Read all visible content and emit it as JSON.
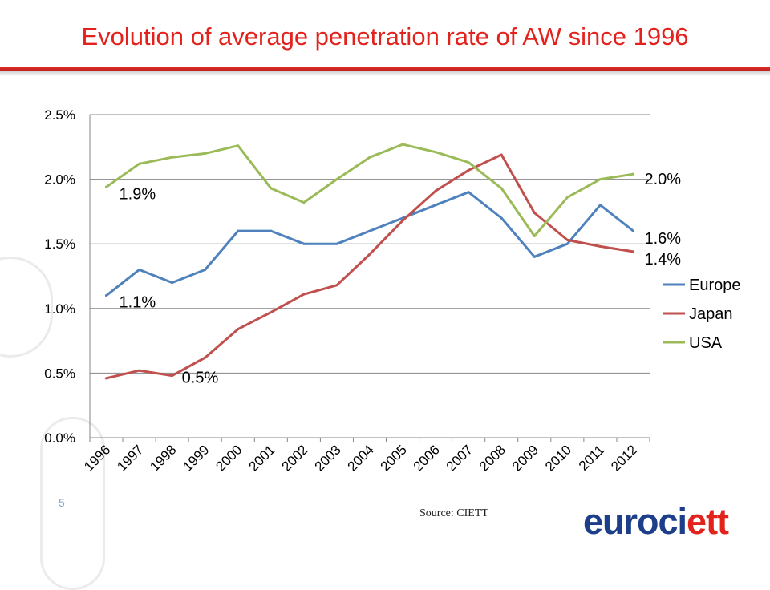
{
  "title": "Evolution of average penetration rate of AW since 1996",
  "source": "Source: CIETT",
  "page_number": "5",
  "logo": {
    "part1": "euroci",
    "part2": "ett"
  },
  "colors": {
    "title": "#e3221d",
    "europe": "#4f81bd",
    "japan": "#c0504d",
    "usa": "#9bbb59",
    "logo_blue": "#1d3f8a",
    "logo_red": "#e3221d"
  },
  "chart_data": {
    "type": "line",
    "title": "",
    "xlabel": "",
    "ylabel": "",
    "categories": [
      "1996",
      "1997",
      "1998",
      "1999",
      "2000",
      "2001",
      "2002",
      "2003",
      "2004",
      "2005",
      "2006",
      "2007",
      "2008",
      "2009",
      "2010",
      "2011",
      "2012"
    ],
    "ylim": [
      0,
      0.025
    ],
    "yticks": [
      "0.0%",
      "0.5%",
      "1.0%",
      "1.5%",
      "2.0%",
      "2.5%"
    ],
    "grid": true,
    "legend": "right",
    "series": [
      {
        "name": "Europe",
        "color": "#4f81bd",
        "values": [
          0.011,
          0.013,
          0.012,
          0.013,
          0.016,
          0.016,
          0.015,
          0.015,
          0.016,
          0.017,
          0.018,
          0.019,
          0.017,
          0.014,
          0.015,
          0.018,
          0.016
        ]
      },
      {
        "name": "Japan",
        "color": "#c0504d",
        "values": [
          0.0046,
          0.0052,
          0.0048,
          0.0062,
          0.0084,
          0.0097,
          0.0111,
          0.0118,
          0.0142,
          0.0168,
          0.0191,
          0.0207,
          0.0219,
          0.0174,
          0.0153,
          0.0148,
          0.0144
        ]
      },
      {
        "name": "USA",
        "color": "#9bbb59",
        "values": [
          0.0194,
          0.0212,
          0.0217,
          0.022,
          0.0226,
          0.0193,
          0.0182,
          0.02,
          0.0217,
          0.0227,
          0.0221,
          0.0213,
          0.0193,
          0.0156,
          0.0186,
          0.02,
          0.0204
        ]
      }
    ],
    "annotations": [
      {
        "text": "1.9%",
        "series": "USA",
        "index": 0
      },
      {
        "text": "1.1%",
        "series": "Europe",
        "index": 0
      },
      {
        "text": "0.5%",
        "series": "Japan",
        "index": 2
      },
      {
        "text": "2.0%",
        "series": "USA",
        "index": 16
      },
      {
        "text": "1.6%",
        "series": "Europe",
        "index": 16
      },
      {
        "text": "1.4%",
        "series": "Japan",
        "index": 16
      }
    ]
  }
}
